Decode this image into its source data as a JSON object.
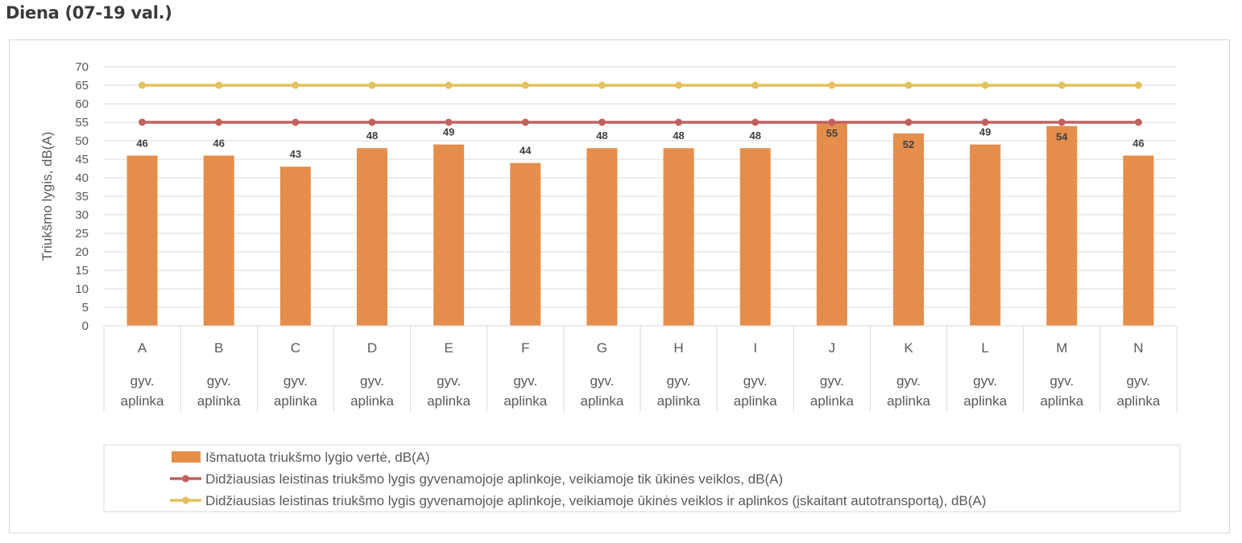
{
  "page_title": "Diena (07-19 val.)",
  "chart_data": {
    "type": "bar",
    "title": "",
    "ylabel": "Triukšmo lygis, dB(A)",
    "ylim": [
      0,
      70
    ],
    "ytick_step": 5,
    "grid": true,
    "legend_position": "bottom",
    "categories": [
      "A",
      "B",
      "C",
      "D",
      "E",
      "F",
      "G",
      "H",
      "I",
      "J",
      "K",
      "L",
      "M",
      "N"
    ],
    "category_sublabel": [
      "gyv.",
      "aplinka"
    ],
    "series": [
      {
        "name": "Išmatuota triukšmo lygio vertė, dB(A)",
        "type": "bar",
        "color": "#E58E4B",
        "values": [
          46,
          46,
          43,
          48,
          49,
          44,
          48,
          48,
          48,
          55,
          52,
          49,
          54,
          46
        ]
      },
      {
        "name": "Didžiausias leistinas triukšmo lygis gyvenamojoje aplinkoje, veikiamoje tik ūkinės veiklos,  dB(A)",
        "type": "line",
        "color": "#C0625F",
        "values": [
          55,
          55,
          55,
          55,
          55,
          55,
          55,
          55,
          55,
          55,
          55,
          55,
          55,
          55
        ]
      },
      {
        "name": "Didžiausias leistinas triukšmo lygis gyvenamojoje aplinkoje, veikiamoje ūkinės veiklos ir aplinkos (įskaitant autotransportą),  dB(A)",
        "type": "line",
        "color": "#E3C15C",
        "values": [
          65,
          65,
          65,
          65,
          65,
          65,
          65,
          65,
          65,
          65,
          65,
          65,
          65,
          65
        ]
      }
    ]
  }
}
